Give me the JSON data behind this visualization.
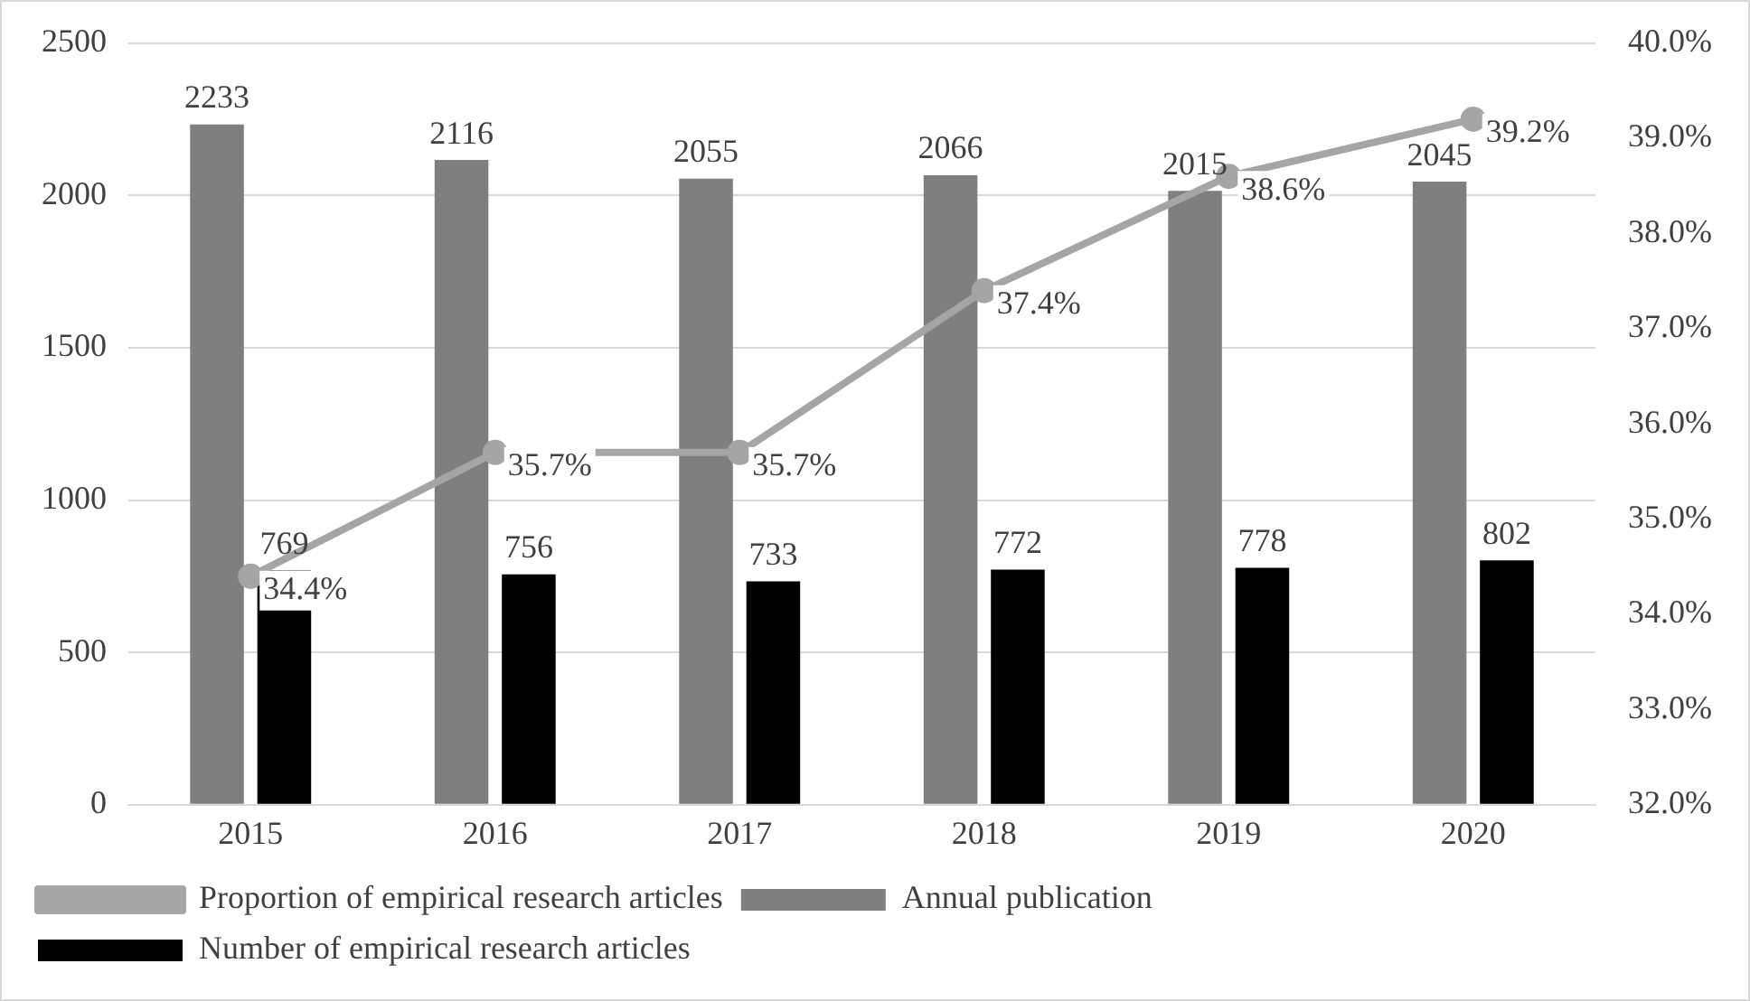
{
  "chart_data": {
    "type": "bar",
    "categories": [
      "2015",
      "2016",
      "2017",
      "2018",
      "2019",
      "2020"
    ],
    "series": [
      {
        "name": "Annual publication",
        "color": "#7f7f7f",
        "values": [
          2233,
          2116,
          2055,
          2066,
          2015,
          2045
        ],
        "value_labels": [
          "2233",
          "2116",
          "2055",
          "2066",
          "2015",
          "2045"
        ]
      },
      {
        "name": "Number of empirical research articles",
        "color": "#000000",
        "values": [
          769,
          756,
          733,
          772,
          778,
          802
        ],
        "value_labels": [
          "769",
          "756",
          "733",
          "772",
          "778",
          "802"
        ]
      },
      {
        "name": "Proportion of empirical research articles",
        "type": "line",
        "axis": "y2",
        "color": "#a5a5a5",
        "marker": "circle",
        "values": [
          34.4,
          35.7,
          35.7,
          37.4,
          38.6,
          39.2
        ],
        "value_labels": [
          "34.4%",
          "35.7%",
          "35.7%",
          "37.4%",
          "38.6%",
          "39.2%"
        ]
      }
    ],
    "ylim": [
      0,
      2500
    ],
    "yticks": [
      0,
      500,
      1000,
      1500,
      2000,
      2500
    ],
    "y2lim": [
      32,
      40
    ],
    "y2ticks": [
      {
        "value": 32,
        "label": "32.0%"
      },
      {
        "value": 33,
        "label": "33.0%"
      },
      {
        "value": 34,
        "label": "34.0%"
      },
      {
        "value": 35,
        "label": "35.0%"
      },
      {
        "value": 36,
        "label": "36.0%"
      },
      {
        "value": 37,
        "label": "37.0%"
      },
      {
        "value": 38,
        "label": "38.0%"
      },
      {
        "value": 39,
        "label": "39.0%"
      },
      {
        "value": 40,
        "label": "40.0%"
      }
    ],
    "grid": "y",
    "legend": "bottom"
  }
}
